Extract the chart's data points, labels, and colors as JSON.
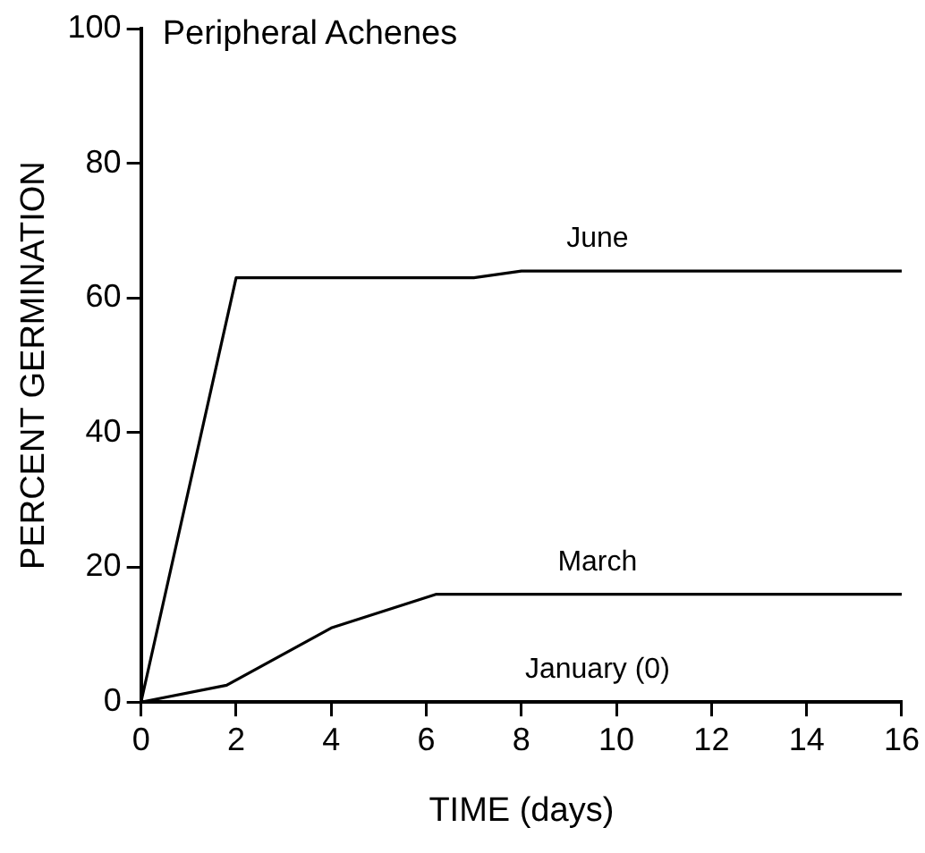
{
  "chart_data": {
    "type": "line",
    "title": "Peripheral Achenes",
    "xlabel": "TIME (days)",
    "ylabel": "PERCENT GERMINATION",
    "xlim": [
      0,
      16
    ],
    "ylim": [
      0,
      100
    ],
    "xticks": [
      0,
      2,
      4,
      6,
      8,
      10,
      12,
      14,
      16
    ],
    "yticks": [
      0,
      20,
      40,
      60,
      80,
      100
    ],
    "grid": false,
    "legend": false,
    "marker": "none",
    "line_style": "solid",
    "series": [
      {
        "name": "June",
        "color": "#000000",
        "x": [
          0,
          2,
          7,
          8,
          16
        ],
        "values": [
          0,
          63,
          63,
          64,
          64
        ]
      },
      {
        "name": "March",
        "color": "#000000",
        "x": [
          0,
          1.8,
          4,
          6.2,
          16
        ],
        "values": [
          0,
          2.5,
          11,
          16,
          16
        ]
      },
      {
        "name": "January (0)",
        "color": "#000000",
        "x": [
          0,
          16
        ],
        "values": [
          0,
          0
        ]
      }
    ]
  }
}
